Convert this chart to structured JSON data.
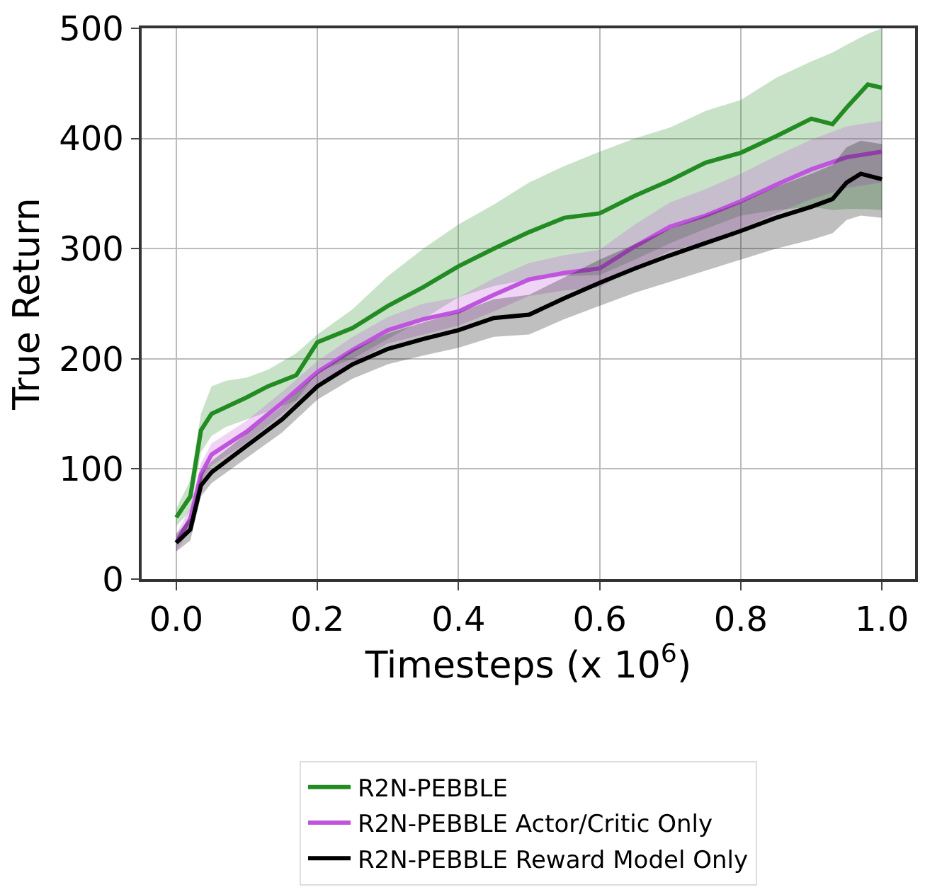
{
  "chart_data": {
    "type": "line",
    "xlabel": "Timesteps (x 10$^{6}$)",
    "ylabel": "True Return",
    "xlim": [
      -0.049,
      1.047
    ],
    "ylim": [
      0,
      500
    ],
    "xticks": [
      {
        "value": 0,
        "label": "0.0"
      },
      {
        "value": 0.2,
        "label": "0.2"
      },
      {
        "value": 0.4,
        "label": "0.4"
      },
      {
        "value": 0.6,
        "label": "0.6"
      },
      {
        "value": 0.8,
        "label": "0.8"
      },
      {
        "value": 1.0,
        "label": "1.0"
      }
    ],
    "yticks": [
      0,
      100,
      200,
      300,
      400,
      500
    ],
    "grid": true,
    "legend": "bottom",
    "marker": "none",
    "line_style": "solid",
    "series": [
      {
        "name": "R2N-PEBBLE",
        "color": "#228b22",
        "x": [
          0,
          0.02,
          0.035,
          0.05,
          0.07,
          0.1,
          0.13,
          0.17,
          0.2,
          0.25,
          0.3,
          0.35,
          0.4,
          0.45,
          0.5,
          0.55,
          0.6,
          0.65,
          0.7,
          0.75,
          0.8,
          0.85,
          0.9,
          0.93,
          0.95,
          0.98,
          1.0
        ],
        "values": [
          56,
          75,
          135,
          150,
          156,
          165,
          175,
          185,
          215,
          228,
          248,
          265,
          284,
          300,
          315,
          328,
          332,
          348,
          362,
          378,
          387,
          402,
          418,
          413,
          428,
          449,
          446
        ],
        "lower": [
          48,
          62,
          115,
          130,
          138,
          145,
          152,
          162,
          188,
          200,
          218,
          236,
          256,
          266,
          272,
          275,
          276,
          290,
          305,
          318,
          330,
          335,
          338,
          335,
          336,
          336,
          335
        ],
        "upper": [
          64,
          90,
          150,
          175,
          180,
          183,
          190,
          205,
          222,
          245,
          275,
          300,
          322,
          340,
          360,
          375,
          388,
          400,
          410,
          425,
          435,
          455,
          470,
          478,
          485,
          495,
          500
        ]
      },
      {
        "name": "R2N-PEBBLE Actor/Critic Only",
        "color": "#bf55dd",
        "x": [
          0,
          0.02,
          0.035,
          0.05,
          0.1,
          0.15,
          0.2,
          0.25,
          0.3,
          0.35,
          0.4,
          0.45,
          0.5,
          0.55,
          0.6,
          0.65,
          0.7,
          0.75,
          0.8,
          0.85,
          0.9,
          0.95,
          1.0
        ],
        "values": [
          33,
          55,
          95,
          113,
          134,
          160,
          188,
          208,
          226,
          236,
          243,
          258,
          272,
          278,
          282,
          302,
          320,
          330,
          343,
          358,
          372,
          383,
          388
        ],
        "lower": [
          25,
          45,
          85,
          103,
          124,
          150,
          178,
          196,
          214,
          222,
          230,
          243,
          257,
          262,
          265,
          282,
          298,
          306,
          318,
          332,
          345,
          355,
          360
        ],
        "upper": [
          41,
          65,
          105,
          123,
          144,
          170,
          198,
          220,
          238,
          250,
          256,
          273,
          287,
          294,
          299,
          322,
          342,
          354,
          368,
          384,
          399,
          411,
          416
        ]
      },
      {
        "name": "R2N-PEBBLE Reward Model Only",
        "color": "#000000",
        "x": [
          0,
          0.02,
          0.035,
          0.05,
          0.1,
          0.15,
          0.2,
          0.25,
          0.3,
          0.35,
          0.4,
          0.45,
          0.5,
          0.55,
          0.6,
          0.65,
          0.7,
          0.75,
          0.8,
          0.85,
          0.9,
          0.93,
          0.95,
          0.97,
          1.0
        ],
        "values": [
          33,
          45,
          85,
          97,
          121,
          145,
          175,
          195,
          209,
          218,
          226,
          237,
          240,
          255,
          269,
          282,
          294,
          305,
          316,
          328,
          338,
          345,
          360,
          368,
          363
        ],
        "lower": [
          25,
          35,
          75,
          87,
          110,
          133,
          163,
          182,
          195,
          203,
          210,
          220,
          222,
          236,
          248,
          260,
          270,
          280,
          290,
          300,
          308,
          314,
          326,
          330,
          328
        ],
        "upper": [
          41,
          55,
          95,
          107,
          132,
          157,
          187,
          208,
          223,
          233,
          242,
          254,
          258,
          274,
          290,
          304,
          318,
          330,
          342,
          356,
          368,
          376,
          392,
          398,
          395
        ]
      }
    ]
  }
}
